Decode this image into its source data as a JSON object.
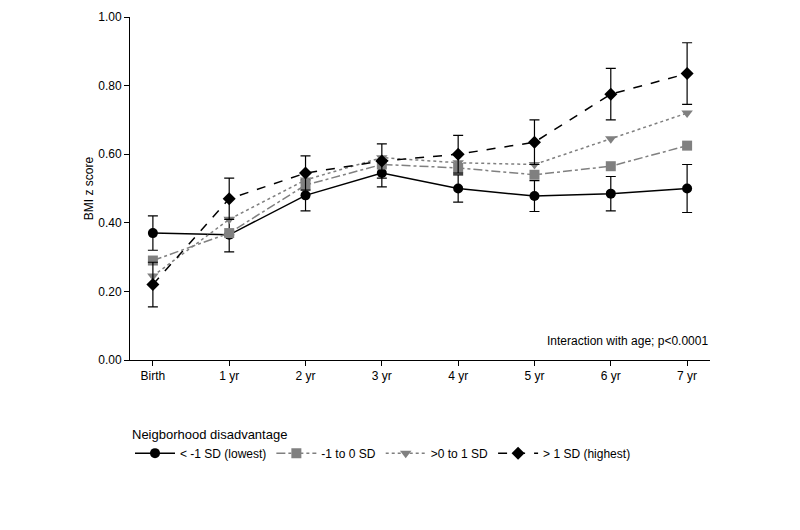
{
  "chart_data": {
    "type": "line",
    "y_label": "BMI z score",
    "annotations": [
      "Interaction with age; p<0.0001"
    ],
    "legend_title": "Neigborhood disadvantage",
    "legend": "bottom",
    "grid": false,
    "categories": [
      "Birth",
      "1 yr",
      "2 yr",
      "3 yr",
      "4 yr",
      "5 yr",
      "6 yr",
      "7 yr"
    ],
    "ylim": [
      0,
      1
    ],
    "yticks": [
      {
        "value": 0,
        "label": "0.00"
      },
      {
        "value": 0.2,
        "label": "0.20"
      },
      {
        "value": 0.4,
        "label": "0.40"
      },
      {
        "value": 0.6,
        "label": "0.60"
      },
      {
        "value": 0.8,
        "label": "0.80"
      },
      {
        "value": 1,
        "label": "1.00"
      }
    ],
    "series": [
      {
        "name": "< -1 SD (lowest)",
        "color": "#000000",
        "marker": "circle",
        "line_style": "solid",
        "values": [
          0.37,
          0.365,
          0.48,
          0.545,
          0.5,
          0.478,
          0.485,
          0.5
        ],
        "error": [
          0.05,
          0.05,
          0.045,
          0.04,
          0.04,
          0.045,
          0.05,
          0.07
        ]
      },
      {
        "name": "-1 to 0 SD",
        "color": "#808080",
        "marker": "square",
        "line_style": "dashdot",
        "values": [
          0.29,
          0.37,
          0.51,
          0.57,
          0.56,
          0.54,
          0.565,
          0.625
        ]
      },
      {
        "name": ">0 to 1 SD",
        "color": "#808080",
        "marker": "triangle-down",
        "line_style": "dot",
        "values": [
          0.245,
          0.41,
          0.525,
          0.59,
          0.575,
          0.57,
          0.645,
          0.72
        ]
      },
      {
        "name": "> 1 SD (highest)",
        "color": "#000000",
        "marker": "diamond",
        "line_style": "dash",
        "values": [
          0.22,
          0.47,
          0.545,
          0.58,
          0.6,
          0.635,
          0.775,
          0.835
        ],
        "error": [
          0.065,
          0.06,
          0.05,
          0.05,
          0.055,
          0.065,
          0.075,
          0.09
        ]
      }
    ]
  }
}
